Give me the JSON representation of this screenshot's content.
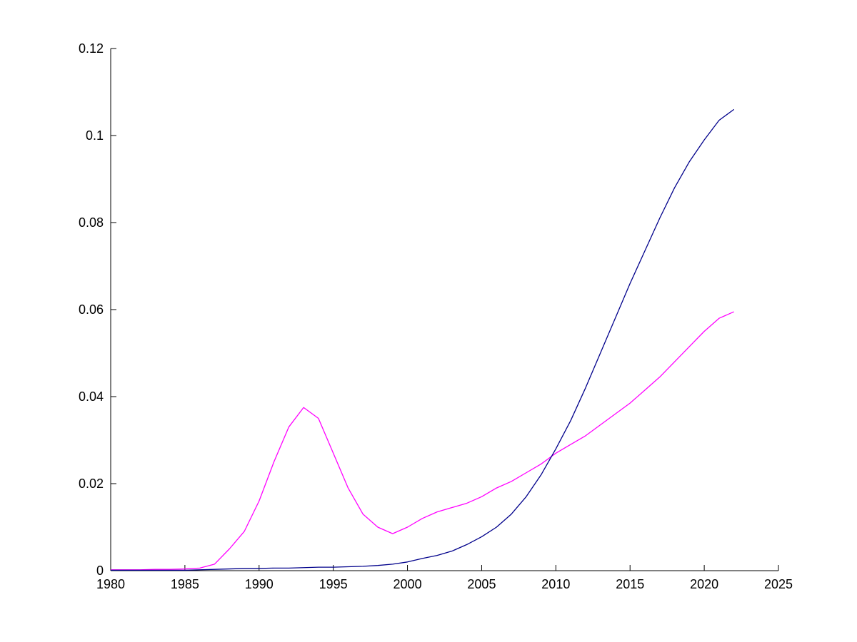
{
  "figure": {
    "background_color": "#FFFFFF",
    "axis_color": "#000000"
  },
  "chart_data": {
    "type": "line",
    "title": "",
    "xlabel": "",
    "ylabel": "",
    "grid": false,
    "legend": null,
    "xlim": [
      1980,
      2025
    ],
    "ylim": [
      0,
      0.12
    ],
    "xticks": [
      1980,
      1985,
      1990,
      1995,
      2000,
      2005,
      2010,
      2015,
      2020,
      2025
    ],
    "xticklabels": [
      "1980",
      "1985",
      "1990",
      "1995",
      "2000",
      "2005",
      "2010",
      "2015",
      "2020",
      "2025"
    ],
    "yticks": [
      0,
      0.02,
      0.04,
      0.06,
      0.08,
      0.1,
      0.12
    ],
    "yticklabels": [
      "0",
      "0.02",
      "0.04",
      "0.06",
      "0.08",
      "0.1",
      "0.12"
    ],
    "x": [
      1980,
      1981,
      1982,
      1983,
      1984,
      1985,
      1986,
      1987,
      1988,
      1989,
      1990,
      1991,
      1992,
      1993,
      1994,
      1995,
      1996,
      1997,
      1998,
      1999,
      2000,
      2001,
      2002,
      2003,
      2004,
      2005,
      2006,
      2007,
      2008,
      2009,
      2010,
      2011,
      2012,
      2013,
      2014,
      2015,
      2016,
      2017,
      2018,
      2019,
      2020,
      2021,
      2022
    ],
    "series": [
      {
        "name": "magenta-series",
        "color": "#FF00FF",
        "values": [
          0.0002,
          0.0002,
          0.0002,
          0.0003,
          0.0003,
          0.0004,
          0.0006,
          0.0015,
          0.005,
          0.009,
          0.016,
          0.025,
          0.033,
          0.0375,
          0.035,
          0.027,
          0.019,
          0.013,
          0.01,
          0.0085,
          0.01,
          0.012,
          0.0135,
          0.0145,
          0.0155,
          0.017,
          0.019,
          0.0205,
          0.0225,
          0.0245,
          0.027,
          0.029,
          0.031,
          0.0335,
          0.036,
          0.0385,
          0.0415,
          0.0445,
          0.048,
          0.0515,
          0.055,
          0.058,
          0.0595
        ]
      },
      {
        "name": "dark-blue-series",
        "color": "#00008B",
        "values": [
          0.0001,
          0.0001,
          0.0001,
          0.0001,
          0.0001,
          0.0001,
          0.0002,
          0.0003,
          0.0004,
          0.0005,
          0.0005,
          0.0006,
          0.0006,
          0.0007,
          0.0008,
          0.0008,
          0.0009,
          0.001,
          0.0012,
          0.0015,
          0.002,
          0.0028,
          0.0035,
          0.0045,
          0.006,
          0.0078,
          0.01,
          0.013,
          0.017,
          0.022,
          0.028,
          0.0345,
          0.042,
          0.05,
          0.058,
          0.066,
          0.0735,
          0.081,
          0.088,
          0.094,
          0.099,
          0.1035,
          0.106
        ]
      }
    ]
  }
}
